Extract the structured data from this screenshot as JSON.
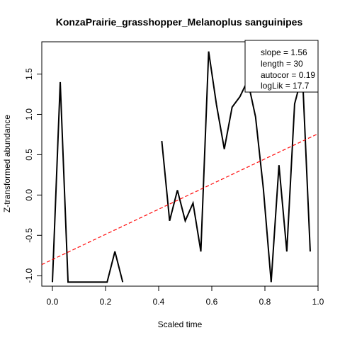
{
  "chart_data": {
    "type": "line",
    "title": "KonzaPrairie_grasshopper_Melanoplus sanguinipes",
    "xlabel": "Scaled time",
    "ylabel": "Z-transformed abundance",
    "xlim": [
      -0.04,
      1.0
    ],
    "ylim": [
      -1.13,
      1.9
    ],
    "x_ticks": [
      0.0,
      0.2,
      0.4,
      0.6,
      0.8,
      1.0
    ],
    "x_tick_labels": [
      "0.0",
      "0.2",
      "0.4",
      "0.6",
      "0.8",
      "1.0"
    ],
    "y_ticks": [
      -1.0,
      -0.5,
      0.0,
      0.5,
      1.0,
      1.5
    ],
    "y_tick_labels": [
      "-1.0",
      "-0.5",
      "0.0",
      "0.5",
      "1.0",
      "1.5"
    ],
    "series_segments": [
      {
        "x": [
          0.0,
          0.0294,
          0.0588,
          0.0882,
          0.1176,
          0.1471,
          0.1765,
          0.2059,
          0.2353,
          0.2647
        ],
        "y": [
          -1.08,
          1.4,
          -1.08,
          -1.08,
          -1.08,
          -1.08,
          -1.08,
          -1.08,
          -0.7,
          -1.08
        ]
      },
      {
        "x": [
          0.4118,
          0.4412,
          0.4706,
          0.5,
          0.5294,
          0.5588,
          0.5882,
          0.6176,
          0.6471,
          0.6765,
          0.7059,
          0.7353,
          0.7647,
          0.7941,
          0.8235,
          0.8529,
          0.8824,
          0.9118,
          0.9412,
          0.9706
        ],
        "y": [
          0.67,
          -0.32,
          0.06,
          -0.32,
          -0.1,
          -0.7,
          1.78,
          1.12,
          0.57,
          1.09,
          1.22,
          1.42,
          0.97,
          0.08,
          -1.08,
          0.37,
          -0.7,
          1.13,
          1.5,
          -0.7
        ]
      }
    ],
    "trend_line": {
      "intercept": -0.8,
      "slope": 1.56,
      "style": "dashed",
      "color": "#ff0000"
    },
    "legend": {
      "position": "top-right",
      "entries": [
        "slope = 1.56",
        "length = 30",
        "autocor = 0.19",
        "logLik = 17.7"
      ]
    },
    "grid": false
  }
}
